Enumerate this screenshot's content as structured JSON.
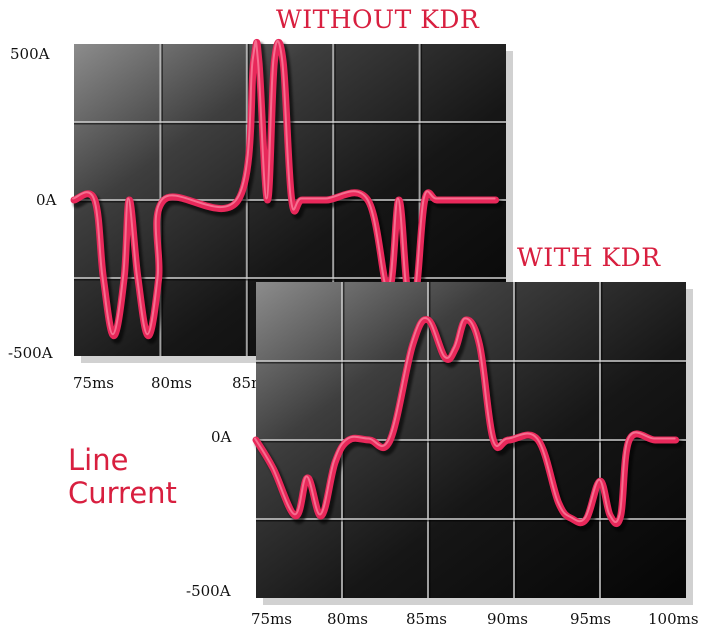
{
  "side_label": [
    "Line",
    "Current"
  ],
  "chart_data": [
    {
      "type": "line",
      "title": "WITHOUT KDR",
      "y_tick_labels": [
        "500A",
        "0A",
        "-500A"
      ],
      "x_tick_labels": [
        "75ms",
        "80ms",
        "85ms"
      ],
      "xlim": [
        75,
        100
      ],
      "ylim": [
        -500,
        500
      ],
      "grid": true,
      "series": [
        {
          "color": "#e8285a",
          "x": [
            75,
            76.2,
            76.7,
            77.3,
            77.9,
            78.2,
            78.7,
            79.3,
            79.9,
            80.2,
            84.5,
            85.4,
            85.7,
            86.2,
            86.6,
            87.1,
            87.6,
            88.2,
            89.6,
            92.0,
            93.2,
            93.8,
            94.3,
            94.8,
            95.3,
            96.0,
            97.1,
            99.4
          ],
          "y": [
            0,
            0,
            -250,
            -435,
            -250,
            0,
            -250,
            -435,
            -250,
            0,
            0,
            445,
            445,
            0,
            445,
            445,
            0,
            0,
            0,
            0,
            -290,
            0,
            -290,
            -290,
            0,
            0,
            0,
            0
          ]
        }
      ]
    },
    {
      "type": "line",
      "title": "WITH KDR",
      "y_tick_labels": [
        "0A",
        "-500A"
      ],
      "x_tick_labels": [
        "75ms",
        "80ms",
        "85ms",
        "90ms",
        "95ms",
        "100ms"
      ],
      "xlim": [
        75,
        100
      ],
      "ylim": [
        -500,
        500
      ],
      "grid": true,
      "series": [
        {
          "color": "#e8285a",
          "x": [
            75,
            76.0,
            77.3,
            78.0,
            78.8,
            79.6,
            80.4,
            81.6,
            82.8,
            84.1,
            85.0,
            86.0,
            86.6,
            87.2,
            88.0,
            88.8,
            89.7,
            91.4,
            92.6,
            93.4,
            94.2,
            95.0,
            95.6,
            96.2,
            96.7,
            98.2,
            99.4
          ],
          "y": [
            0,
            -90,
            -240,
            -120,
            -240,
            -70,
            0,
            0,
            0,
            300,
            380,
            260,
            290,
            380,
            300,
            0,
            0,
            0,
            -200,
            -250,
            -250,
            -130,
            -240,
            -240,
            0,
            0,
            0
          ]
        }
      ]
    }
  ]
}
